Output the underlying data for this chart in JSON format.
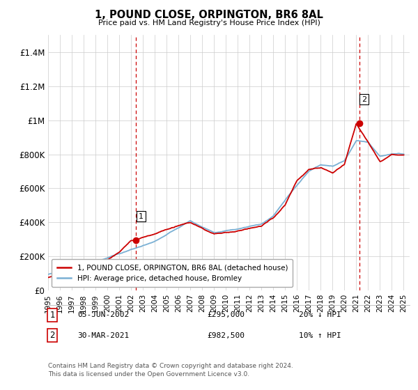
{
  "title": "1, POUND CLOSE, ORPINGTON, BR6 8AL",
  "subtitle": "Price paid vs. HM Land Registry's House Price Index (HPI)",
  "xlim_start": 1995.0,
  "xlim_end": 2025.5,
  "ylim": [
    0,
    1500000
  ],
  "yticks": [
    0,
    200000,
    400000,
    600000,
    800000,
    1000000,
    1200000,
    1400000
  ],
  "ytick_labels": [
    "£0",
    "£200K",
    "£400K",
    "£600K",
    "£800K",
    "£1M",
    "£1.2M",
    "£1.4M"
  ],
  "xtick_years": [
    1995,
    1996,
    1997,
    1998,
    1999,
    2000,
    2001,
    2002,
    2003,
    2004,
    2005,
    2006,
    2007,
    2008,
    2009,
    2010,
    2011,
    2012,
    2013,
    2014,
    2015,
    2016,
    2017,
    2018,
    2019,
    2020,
    2021,
    2022,
    2023,
    2024,
    2025
  ],
  "sale1_x": 2002.43,
  "sale1_y": 295000,
  "sale1_label": "1",
  "sale1_date": "05-JUN-2002",
  "sale1_price": "£295,000",
  "sale1_hpi": "20% ↓ HPI",
  "sale2_x": 2021.25,
  "sale2_y": 982500,
  "sale2_label": "2",
  "sale2_date": "30-MAR-2021",
  "sale2_price": "£982,500",
  "sale2_hpi": "10% ↑ HPI",
  "legend_line1": "1, POUND CLOSE, ORPINGTON, BR6 8AL (detached house)",
  "legend_line2": "HPI: Average price, detached house, Bromley",
  "footer1": "Contains HM Land Registry data © Crown copyright and database right 2024.",
  "footer2": "This data is licensed under the Open Government Licence v3.0.",
  "red_color": "#cc0000",
  "blue_color": "#7ab0d4",
  "bg_color": "#ffffff",
  "grid_color": "#cccccc",
  "hpi_kx": [
    1995,
    1997,
    1999,
    2002,
    2004,
    2006,
    2007,
    2009,
    2011,
    2013,
    2014,
    2016,
    2017,
    2018,
    2019,
    2020,
    2021,
    2022,
    2023,
    2024,
    2025
  ],
  "hpi_ky": [
    95000,
    130000,
    170000,
    240000,
    290000,
    370000,
    410000,
    340000,
    360000,
    390000,
    440000,
    620000,
    700000,
    740000,
    730000,
    760000,
    880000,
    870000,
    790000,
    800000,
    810000
  ],
  "price_kx": [
    1995,
    1997,
    1999,
    2001,
    2002,
    2004,
    2006,
    2007,
    2009,
    2011,
    2013,
    2014,
    2015,
    2016,
    2017,
    2018,
    2019,
    2020,
    2021,
    2022,
    2023,
    2024,
    2025
  ],
  "price_ky": [
    80000,
    110000,
    145000,
    220000,
    295000,
    330000,
    380000,
    400000,
    330000,
    350000,
    380000,
    430000,
    500000,
    650000,
    710000,
    720000,
    690000,
    740000,
    982500,
    870000,
    760000,
    800000,
    790000
  ]
}
